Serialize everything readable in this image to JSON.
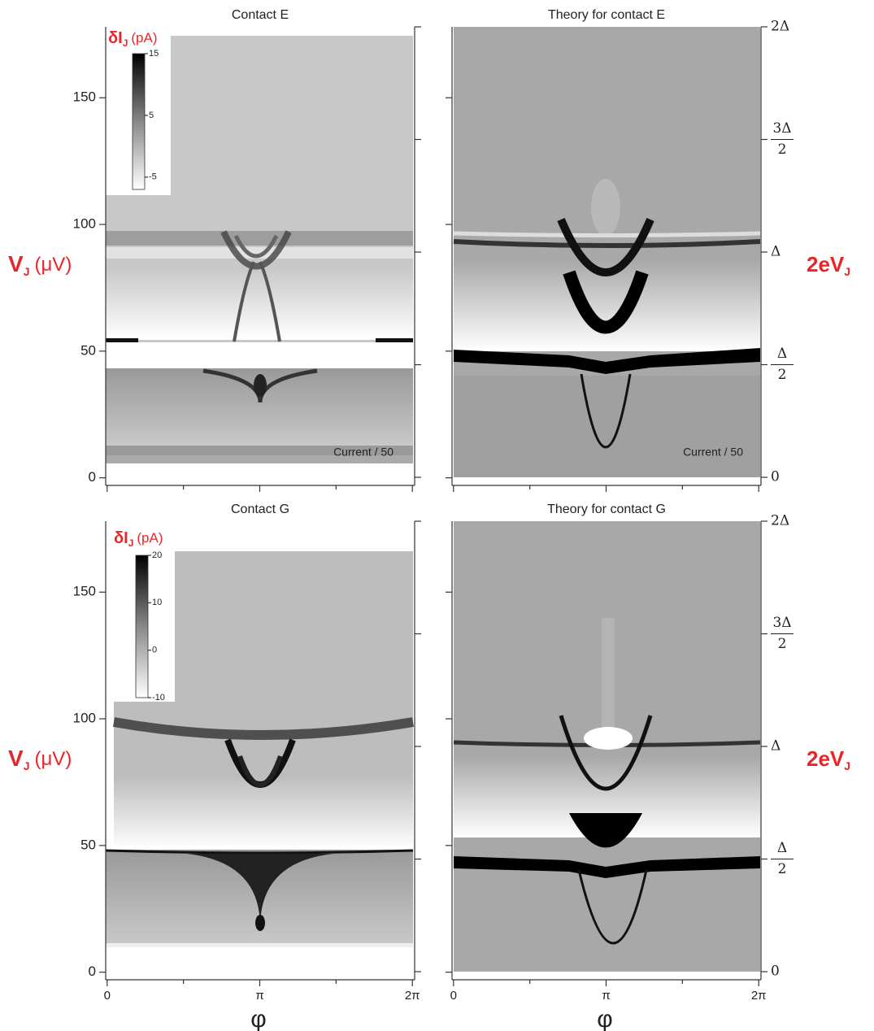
{
  "chart_data": [
    {
      "type": "heatmap",
      "title": "Contact E",
      "xlim": [
        -0.03,
        6.33
      ],
      "xticks": [
        0,
        {
          "value": 3.1416,
          "label": "π"
        },
        {
          "value": 6.2832,
          "label": "2π"
        }
      ],
      "xminor_ticks": [
        1.5708,
        4.7124
      ],
      "xtick_labels": false,
      "ylim": [
        -3,
        178
      ],
      "yticks": [
        0,
        50,
        100,
        150
      ],
      "yaxis_side": "left",
      "ylabel": {
        "text": "V",
        "sub": "J",
        "unit": "(μV)"
      },
      "annotation": "Current / 50",
      "colorbar": {
        "title": "δI",
        "sub": "J",
        "unit": "(pA)",
        "clim": [
          -7,
          15
        ],
        "ticks": [
          -5,
          5,
          15
        ]
      }
    },
    {
      "type": "heatmap",
      "title": "Theory for contact E",
      "xlim": [
        -0.03,
        6.33
      ],
      "xticks": [
        0,
        {
          "value": 3.1416,
          "label": "π"
        },
        {
          "value": 6.2832,
          "label": "2π"
        }
      ],
      "xminor_ticks": [
        1.5708,
        4.7124
      ],
      "xtick_labels": false,
      "ylim": [
        -0.036,
        2
      ],
      "yticks": [
        0,
        {
          "value": 0.5,
          "label": "Δ/2"
        },
        {
          "value": 1,
          "label": "Δ"
        },
        {
          "value": 1.5,
          "label": "3Δ/2"
        },
        {
          "value": 2,
          "label": "2Δ"
        }
      ],
      "yaxis_side": "right",
      "ylabel": {
        "text": "2eV",
        "sub": "J"
      },
      "annotation": "Current / 50"
    },
    {
      "type": "heatmap",
      "title": "Contact G",
      "xlim": [
        -0.03,
        6.33
      ],
      "xticks": [
        0,
        {
          "value": 3.1416,
          "label": "π"
        },
        {
          "value": 6.2832,
          "label": "2π"
        }
      ],
      "xminor_ticks": [
        1.5708,
        4.7124
      ],
      "xtick_labels": true,
      "xlabel": "φ",
      "ylim": [
        -3,
        178
      ],
      "yticks": [
        0,
        50,
        100,
        150
      ],
      "yaxis_side": "left",
      "ylabel": {
        "text": "V",
        "sub": "J",
        "unit": "(μV)"
      },
      "colorbar": {
        "title": "δI",
        "sub": "J",
        "unit": "(pA)",
        "clim": [
          -10,
          20
        ],
        "ticks": [
          -10,
          0,
          10,
          20
        ]
      }
    },
    {
      "type": "heatmap",
      "title": "Theory for contact G",
      "xlim": [
        -0.03,
        6.33
      ],
      "xticks": [
        0,
        {
          "value": 3.1416,
          "label": "π"
        },
        {
          "value": 6.2832,
          "label": "2π"
        }
      ],
      "xminor_ticks": [
        1.5708,
        4.7124
      ],
      "xtick_labels": true,
      "xlabel": "φ",
      "ylim": [
        -0.036,
        2
      ],
      "yticks": [
        0,
        {
          "value": 0.5,
          "label": "Δ/2"
        },
        {
          "value": 1,
          "label": "Δ"
        },
        {
          "value": 1.5,
          "label": "3Δ/2"
        },
        {
          "value": 2,
          "label": "2Δ"
        }
      ],
      "yaxis_side": "right",
      "ylabel": {
        "text": "2eV",
        "sub": "J"
      }
    }
  ]
}
